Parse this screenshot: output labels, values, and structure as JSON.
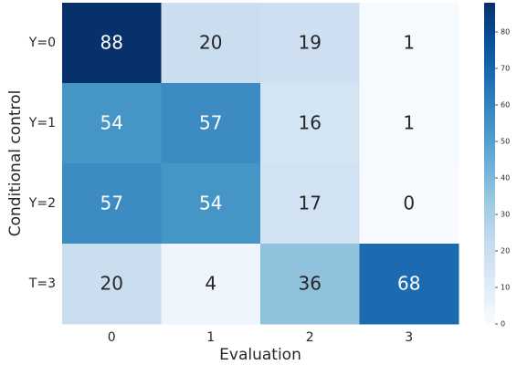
{
  "chart_data": {
    "type": "heatmap",
    "xlabel": "Evaluation",
    "ylabel": "Conditional control",
    "x_categories": [
      "0",
      "1",
      "2",
      "3"
    ],
    "y_categories": [
      "Y=0",
      "Y=1",
      "Y=2",
      "T=3"
    ],
    "values": [
      [
        88,
        20,
        19,
        1
      ],
      [
        54,
        57,
        16,
        1
      ],
      [
        57,
        54,
        17,
        0
      ],
      [
        20,
        4,
        36,
        68
      ]
    ],
    "colormap": "Blues",
    "zlim": [
      0,
      88
    ],
    "zticks": [
      0,
      10,
      20,
      30,
      40,
      50,
      60,
      70,
      80
    ]
  }
}
